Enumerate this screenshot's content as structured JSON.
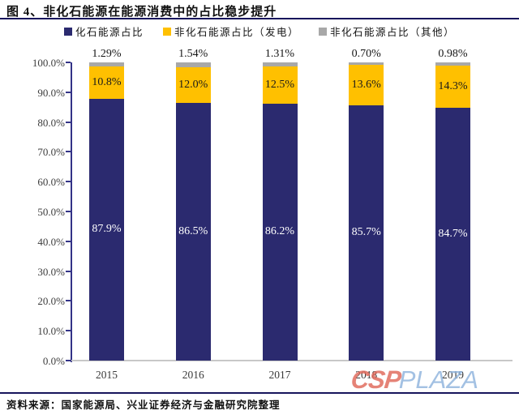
{
  "figure": {
    "title": "图 4、非化石能源在能源消费中的占比稳步提升",
    "source_note": "资料来源：国家能源局、兴业证券经济与金融研究院整理"
  },
  "watermark": {
    "csp": "CSP",
    "plaza": "PLAZA",
    "csp_color": "#e0685a",
    "plaza_color": "#8fb4dd"
  },
  "colors": {
    "axis": "#333387",
    "rule": "#17155c",
    "baseline": "#c8c8c8"
  },
  "chart_data": {
    "type": "bar",
    "stacked": true,
    "title": "图 4、非化石能源在能源消费中的占比稳步提升",
    "categories": [
      "2015",
      "2016",
      "2017",
      "2018",
      "2019"
    ],
    "series": [
      {
        "name": "化石能源占比",
        "color": "#2b2a6f",
        "values": [
          87.9,
          86.5,
          86.2,
          85.7,
          84.7
        ],
        "labels": [
          "87.9%",
          "86.5%",
          "86.2%",
          "85.7%",
          "84.7%"
        ],
        "label_color": "#ffffff",
        "label_position": "inside"
      },
      {
        "name": "非化石能源占比（发电）",
        "color": "#ffc000",
        "values": [
          10.8,
          12.0,
          12.5,
          13.6,
          14.3
        ],
        "labels": [
          "10.8%",
          "12.0%",
          "12.5%",
          "13.6%",
          "14.3%"
        ],
        "label_color": "#1a1a1a",
        "label_position": "inside"
      },
      {
        "name": "非化石能源占比（其他）",
        "color": "#a8a8a8",
        "values": [
          1.29,
          1.54,
          1.31,
          0.7,
          0.98
        ],
        "labels": [
          "1.29%",
          "1.54%",
          "1.31%",
          "0.70%",
          "0.98%"
        ],
        "label_color": "#161616",
        "label_position": "above"
      }
    ],
    "y_ticks": [
      "100.0%",
      "90.0%",
      "80.0%",
      "70.0%",
      "60.0%",
      "50.0%",
      "40.0%",
      "30.0%",
      "20.0%",
      "10.0%",
      "0.0%"
    ],
    "ylim": [
      0,
      100
    ],
    "xlabel": "",
    "ylabel": "",
    "legend_position": "top",
    "grid": false
  }
}
